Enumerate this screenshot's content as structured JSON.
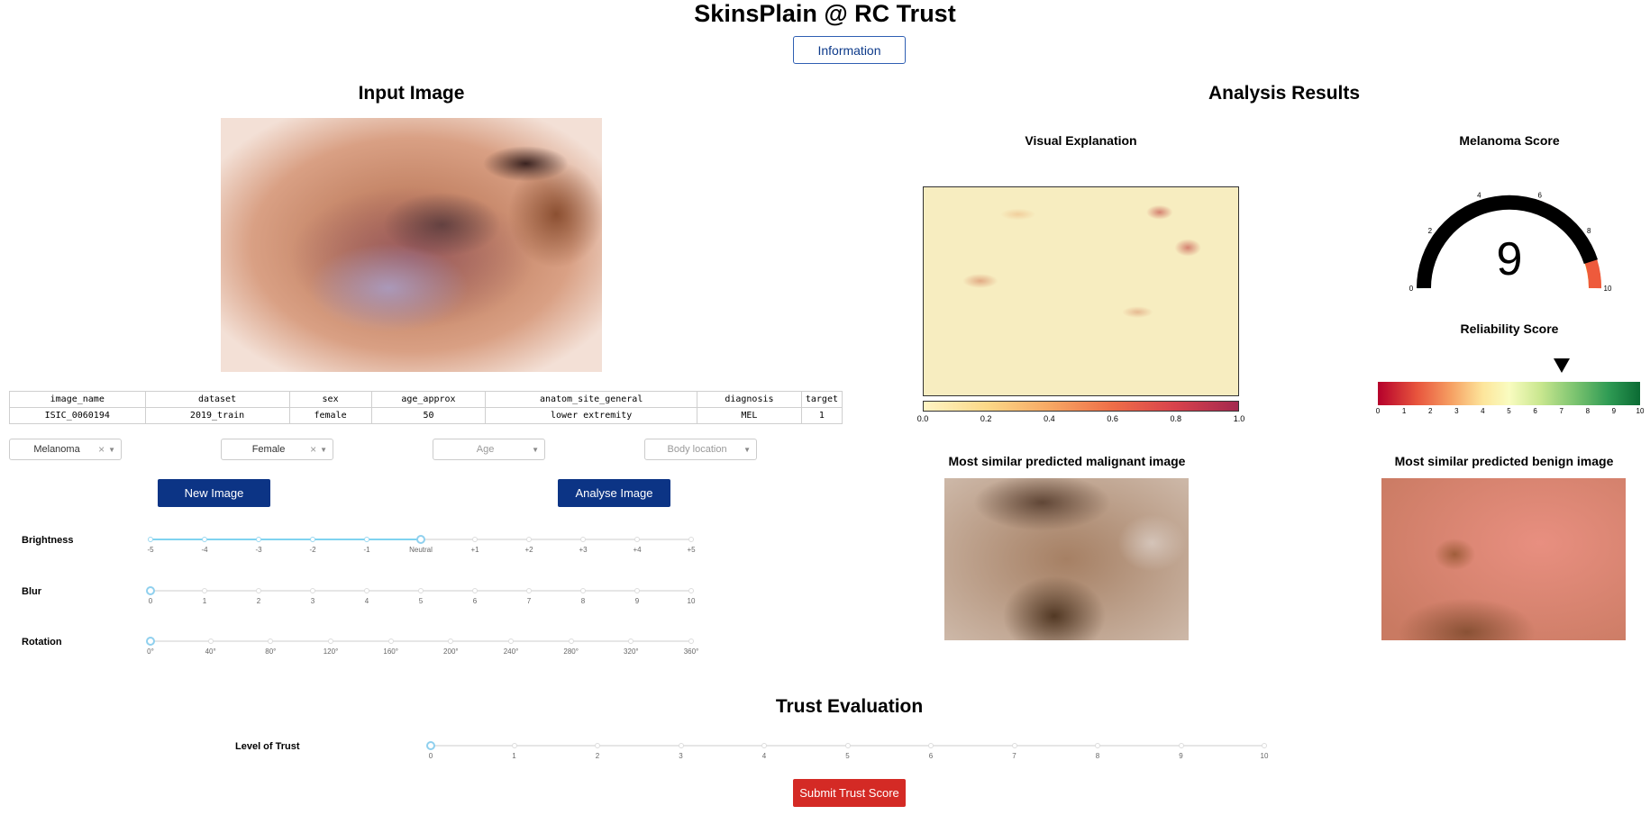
{
  "header": {
    "title": "SkinsPlain @ RC Trust",
    "info_button": "Information"
  },
  "input_section": {
    "title": "Input Image",
    "table": {
      "headers": [
        "image_name",
        "dataset",
        "sex",
        "age_approx",
        "anatom_site_general",
        "diagnosis",
        "target"
      ],
      "row": [
        "ISIC_0060194",
        "2019_train",
        "female",
        "50",
        "lower extremity",
        "MEL",
        "1"
      ]
    },
    "filters": {
      "diagnosis_value": "Melanoma",
      "sex_value": "Female",
      "age_placeholder": "Age",
      "location_placeholder": "Body location"
    },
    "new_image_button": "New Image",
    "analyse_image_button": "Analyse Image"
  },
  "sliders": {
    "brightness": {
      "label": "Brightness",
      "ticks": [
        "-5",
        "-4",
        "-3",
        "-2",
        "-1",
        "Neutral",
        "+1",
        "+2",
        "+3",
        "+4",
        "+5"
      ],
      "value_index": 5
    },
    "blur": {
      "label": "Blur",
      "ticks": [
        "0",
        "1",
        "2",
        "3",
        "4",
        "5",
        "6",
        "7",
        "8",
        "9",
        "10"
      ],
      "value_index": 0
    },
    "rotation": {
      "label": "Rotation",
      "ticks": [
        "0°",
        "40°",
        "80°",
        "120°",
        "160°",
        "200°",
        "240°",
        "280°",
        "320°",
        "360°"
      ],
      "value_index": 0
    }
  },
  "analysis": {
    "title": "Analysis Results",
    "visual_explanation_title": "Visual Explanation",
    "colorbar_ticks": [
      "0.0",
      "0.2",
      "0.4",
      "0.6",
      "0.8",
      "1.0"
    ],
    "melanoma_score_title": "Melanoma Score",
    "melanoma_score": "9",
    "gauge_ticks": [
      "0",
      "2",
      "4",
      "6",
      "8",
      "10"
    ],
    "gauge_value_fraction": 0.9,
    "reliability_title": "Reliability Score",
    "reliability_ticks": [
      "0",
      "1",
      "2",
      "3",
      "4",
      "5",
      "6",
      "7",
      "8",
      "9",
      "10"
    ],
    "reliability_value": 7,
    "malignant_title": "Most similar predicted malignant image",
    "benign_title": "Most similar predicted benign image"
  },
  "trust": {
    "title": "Trust Evaluation",
    "label": "Level of Trust",
    "ticks": [
      "0",
      "1",
      "2",
      "3",
      "4",
      "5",
      "6",
      "7",
      "8",
      "9",
      "10"
    ],
    "value_index": 0,
    "submit_button": "Submit Trust Score"
  },
  "colors": {
    "primary": "#0c3485",
    "danger": "#d42a25",
    "gauge_green": "#1dbf8a",
    "gauge_orange": "#f39c1a",
    "gauge_red": "#ee5a3c"
  }
}
